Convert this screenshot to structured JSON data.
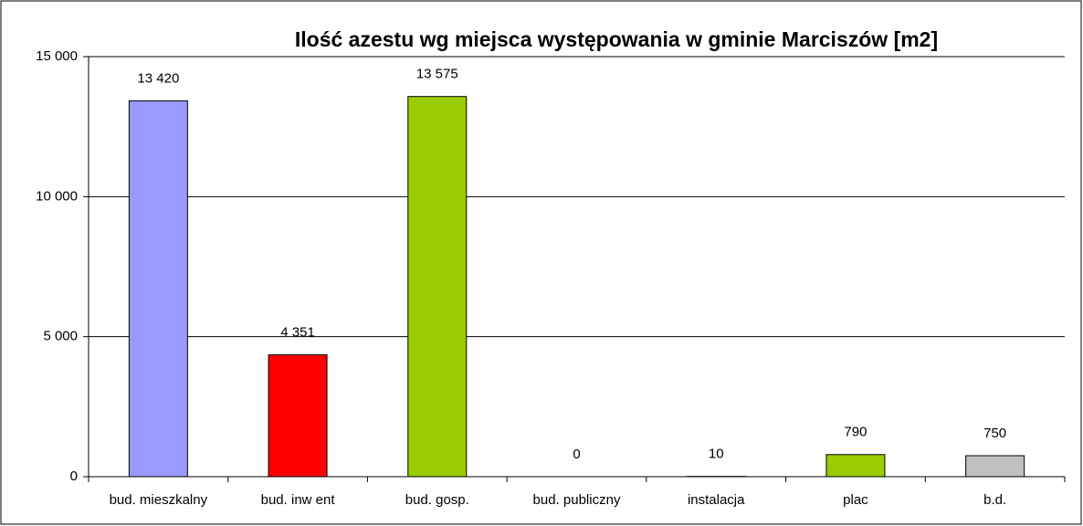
{
  "chart_data": {
    "type": "bar",
    "title": "Ilość azestu wg miejsca występowania w gminie Marciszów [m2]",
    "categories": [
      "bud. mieszkalny",
      "bud. inw ent",
      "bud. gosp.",
      "bud. publiczny",
      "instalacja",
      "plac",
      "b.d."
    ],
    "values": [
      13420,
      4351,
      13575,
      0,
      10,
      790,
      750
    ],
    "value_labels": [
      "13 420",
      "4 351",
      "13 575",
      "0",
      "10",
      "790",
      "750"
    ],
    "colors": [
      "#9999ff",
      "#ff0000",
      "#99cc00",
      "#99cc00",
      "#99cc00",
      "#99cc00",
      "#c0c0c0"
    ],
    "ylim": [
      0,
      15000
    ],
    "yticks": [
      0,
      {
        "value": 5000,
        "label": "5 000"
      },
      {
        "value": 10000,
        "label": "10 000"
      },
      {
        "value": 15000,
        "label": "15 000"
      }
    ],
    "grid": true
  }
}
